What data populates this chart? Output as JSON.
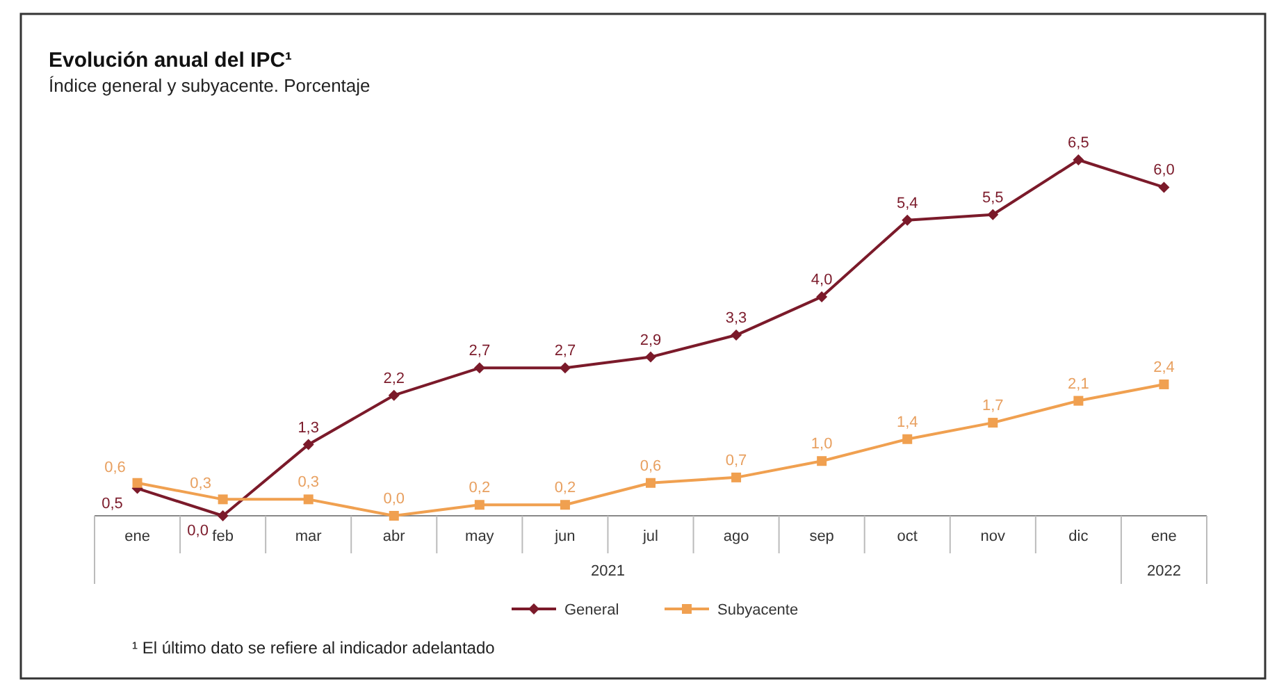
{
  "chart_data": {
    "type": "line",
    "title": "Evolución anual del IPC¹",
    "subtitle": "Índice general y subyacente. Porcentaje",
    "categories": [
      "ene",
      "feb",
      "mar",
      "abr",
      "may",
      "jun",
      "jul",
      "ago",
      "sep",
      "oct",
      "nov",
      "dic",
      "ene"
    ],
    "series": [
      {
        "name": "General",
        "color": "#7b1a2a",
        "marker": "diamond",
        "values": [
          0.5,
          0.0,
          1.3,
          2.2,
          2.7,
          2.7,
          2.9,
          3.3,
          4.0,
          5.4,
          5.5,
          6.5,
          6.0
        ],
        "value_labels": [
          "0,5",
          "0,0",
          "1,3",
          "2,2",
          "2,7",
          "2,7",
          "2,9",
          "3,3",
          "4,0",
          "5,4",
          "5,5",
          "6,5",
          "6,0"
        ]
      },
      {
        "name": "Subyacente",
        "color": "#f0a050",
        "marker": "square",
        "values": [
          0.6,
          0.3,
          0.3,
          0.0,
          0.2,
          0.2,
          0.6,
          0.7,
          1.0,
          1.4,
          1.7,
          2.1,
          2.4
        ],
        "value_labels": [
          "0,6",
          "0,3",
          "0,3",
          "0,0",
          "0,2",
          "0,2",
          "0,6",
          "0,7",
          "1,0",
          "1,4",
          "1,7",
          "2,1",
          "2,4"
        ]
      }
    ],
    "legend": "bottom",
    "tick_labels": "x",
    "annotations": [
      "2021",
      "2022",
      "¹ El último dato se refiere al indicador adelantado"
    ]
  }
}
